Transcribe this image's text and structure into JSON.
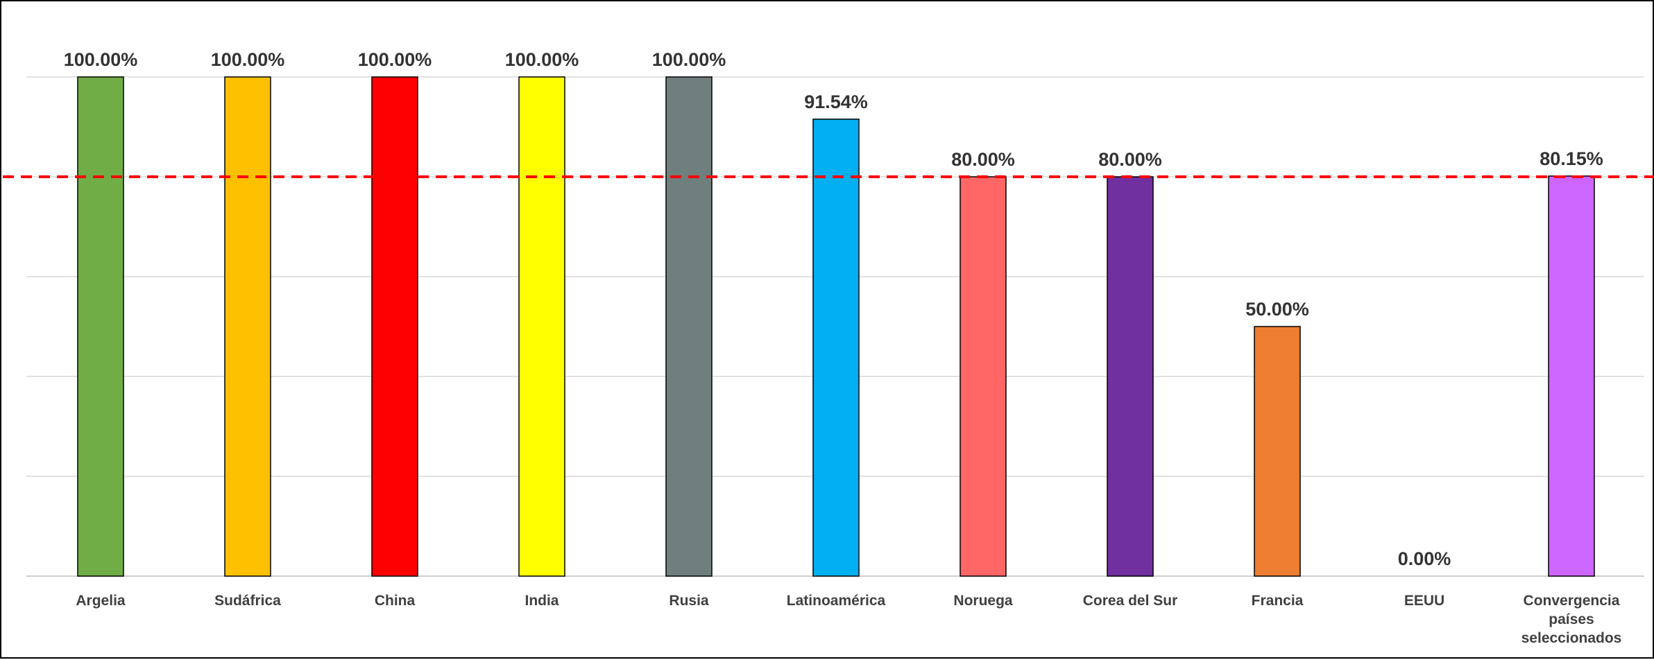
{
  "chart_data": {
    "type": "bar",
    "title": "",
    "xlabel": "",
    "ylabel": "",
    "ylim": [
      0,
      100
    ],
    "grid": true,
    "legend": "none",
    "categories": [
      "Argelia",
      "Sudáfrica",
      "China",
      "India",
      "Rusia",
      "Latinoamérica",
      "Noruega",
      "Corea del Sur",
      "Francia",
      "EEUU",
      "Convergencia países seleccionados"
    ],
    "values": [
      100,
      100,
      100,
      100,
      100,
      91.54,
      80,
      80,
      50,
      0,
      80.15
    ],
    "value_labels": [
      "100.00%",
      "100.00%",
      "100.00%",
      "100.00%",
      "100.00%",
      "91.54%",
      "80.00%",
      "80.00%",
      "50.00%",
      "0.00%",
      "80.15%"
    ],
    "colors": [
      "#70AD47",
      "#FFC000",
      "#FF0000",
      "#FFFF00",
      "#6E7F7E",
      "#00B0F0",
      "#FF6666",
      "#7030A0",
      "#ED7D31",
      "#FFFFFF",
      "#CC66FF"
    ],
    "reference_line": {
      "value": 80,
      "color": "#FF0000",
      "style": "dashed"
    }
  }
}
